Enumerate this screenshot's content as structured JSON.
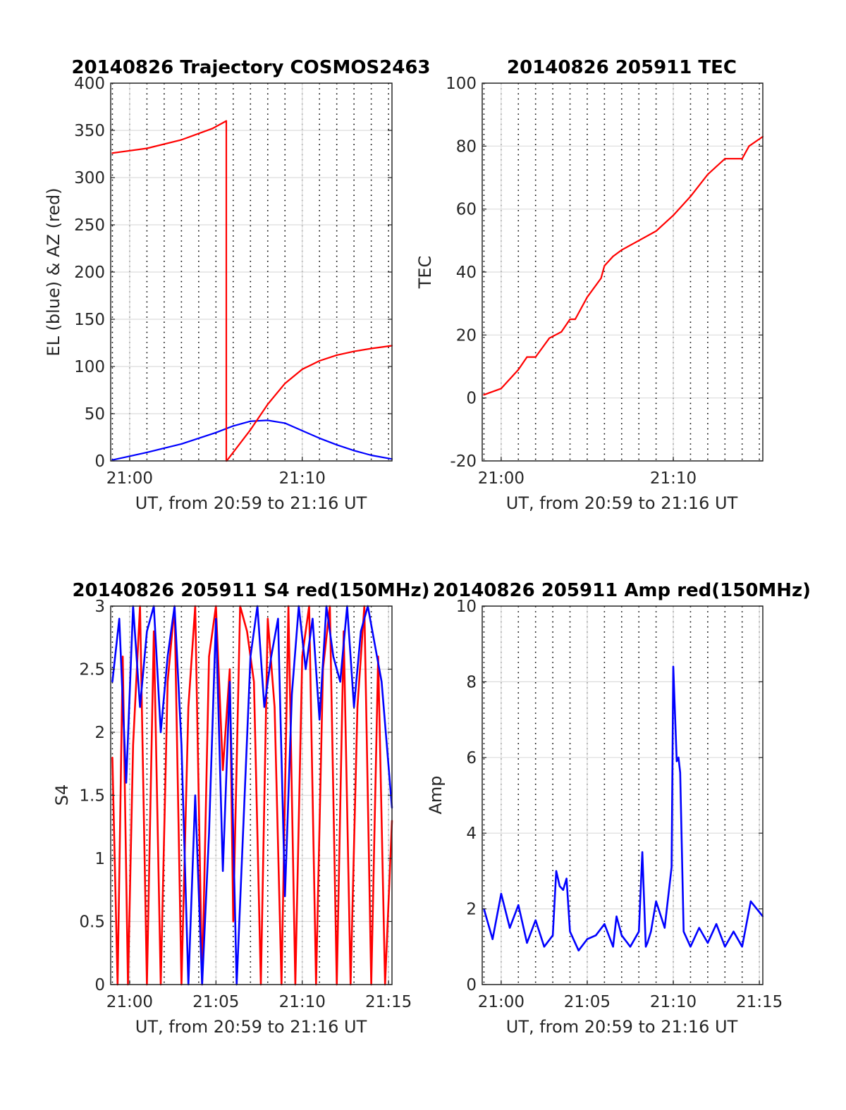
{
  "chart_data": [
    {
      "id": "trajectory",
      "type": "line",
      "title": "20140826 Trajectory COSMOS2463",
      "xlabel": "UT, from 20:59 to 21:16 UT",
      "ylabel": "EL (blue) & AZ (red)",
      "xlim": [
        20.983,
        21.267
      ],
      "ylim": [
        0,
        400
      ],
      "x_unit": "minutes after 20:59 UT",
      "xticks": [
        {
          "m": 1,
          "label": "21:00"
        },
        {
          "m": 11,
          "label": "21:10"
        }
      ],
      "yticks": [
        {
          "v": 0,
          "label": "0"
        },
        {
          "v": 50,
          "label": "50"
        },
        {
          "v": 100,
          "label": "100"
        },
        {
          "v": 150,
          "label": "150"
        },
        {
          "v": 200,
          "label": "200"
        },
        {
          "v": 250,
          "label": "250"
        },
        {
          "v": 300,
          "label": "300"
        },
        {
          "v": 350,
          "label": "350"
        },
        {
          "v": 400,
          "label": "400"
        }
      ],
      "grid": true,
      "series": [
        {
          "name": "EL",
          "color": "#0000ff",
          "x": [
            0,
            2,
            4,
            6,
            7,
            8,
            9,
            10,
            11,
            12,
            13,
            14,
            15,
            16.2
          ],
          "y": [
            1,
            9,
            18,
            30,
            37,
            42,
            43,
            40,
            32,
            24,
            17,
            11,
            6,
            2
          ]
        },
        {
          "name": "AZ",
          "color": "#ff0000",
          "x": [
            0,
            2,
            4,
            5.8,
            6.6,
            6.6,
            6.62,
            8,
            9,
            10,
            11,
            12,
            13,
            14,
            15,
            16.2
          ],
          "y": [
            326,
            331,
            340,
            352,
            360,
            0,
            0,
            33,
            60,
            82,
            97,
            106,
            112,
            116,
            119,
            122
          ]
        }
      ]
    },
    {
      "id": "tec",
      "type": "line",
      "title": "20140826 205911 TEC",
      "xlabel": "UT, from 20:59 to 21:16 UT",
      "ylabel": "TEC",
      "xlim": [
        20.983,
        21.267
      ],
      "ylim": [
        -20,
        100
      ],
      "x_unit": "minutes after 20:59 UT",
      "xticks": [
        {
          "m": 1,
          "label": "21:00"
        },
        {
          "m": 11,
          "label": "21:10"
        }
      ],
      "yticks": [
        {
          "v": -20,
          "label": "-20"
        },
        {
          "v": 0,
          "label": "0"
        },
        {
          "v": 20,
          "label": "20"
        },
        {
          "v": 40,
          "label": "40"
        },
        {
          "v": 60,
          "label": "60"
        },
        {
          "v": 80,
          "label": "80"
        },
        {
          "v": 100,
          "label": "100"
        }
      ],
      "grid": true,
      "series": [
        {
          "name": "TEC",
          "color": "#ff0000",
          "x": [
            0,
            1,
            2,
            2.5,
            3,
            3.8,
            4.5,
            5,
            5.3,
            6,
            6.8,
            7,
            7.5,
            8,
            9,
            10,
            11,
            12,
            13,
            14,
            15,
            15.4,
            16.2
          ],
          "y": [
            1,
            3,
            9,
            13,
            13,
            19,
            21,
            25,
            25,
            32,
            38,
            42,
            45,
            47,
            50,
            53,
            58,
            64,
            71,
            76,
            76,
            80,
            83
          ]
        }
      ]
    },
    {
      "id": "s4",
      "type": "line",
      "title": "20140826 205911 S4 red(150MHz)",
      "xlabel": "UT, from 20:59 to 21:16 UT",
      "ylabel": "S4",
      "xlim": [
        20.983,
        21.267
      ],
      "ylim": [
        0,
        3
      ],
      "x_unit": "minutes after 20:59 UT",
      "xticks": [
        {
          "m": 1,
          "label": "21:00"
        },
        {
          "m": 6,
          "label": "21:05"
        },
        {
          "m": 11,
          "label": "21:10"
        },
        {
          "m": 16,
          "label": "21:15"
        }
      ],
      "yticks": [
        {
          "v": 0,
          "label": "0"
        },
        {
          "v": 0.5,
          "label": "0.5"
        },
        {
          "v": 1,
          "label": "1"
        },
        {
          "v": 1.5,
          "label": "1.5"
        },
        {
          "v": 2,
          "label": "2"
        },
        {
          "v": 2.5,
          "label": "2.5"
        },
        {
          "v": 3,
          "label": "3"
        }
      ],
      "grid": true,
      "series": [
        {
          "name": "red",
          "color": "#ff0000",
          "x": [
            0,
            0.3,
            0.6,
            0.9,
            1.2,
            1.6,
            2.0,
            2.4,
            2.8,
            3.2,
            3.6,
            4.0,
            4.4,
            4.8,
            5.2,
            5.6,
            6.0,
            6.4,
            6.8,
            7.0,
            7.4,
            7.8,
            8.2,
            8.6,
            9.0,
            9.4,
            9.8,
            10.2,
            10.6,
            11.0,
            11.4,
            11.8,
            12.2,
            12.6,
            13.0,
            13.4,
            13.8,
            14.2,
            14.6,
            15.0,
            15.4,
            15.8,
            16.2
          ],
          "y": [
            1.8,
            0,
            2.6,
            0,
            1.9,
            3,
            0,
            2.8,
            0,
            2.4,
            3,
            0,
            2.2,
            3,
            0,
            2.6,
            3,
            1.7,
            2.5,
            0.5,
            3,
            2.8,
            2.4,
            0,
            2.9,
            2.2,
            0,
            3,
            0,
            2.6,
            3,
            0,
            2.5,
            3,
            0,
            2.8,
            0,
            2.2,
            3,
            0,
            2.6,
            0,
            1.3
          ]
        },
        {
          "name": "blue",
          "color": "#0000ff",
          "x": [
            0,
            0.4,
            0.8,
            1.2,
            1.6,
            2.0,
            2.4,
            2.8,
            3.2,
            3.6,
            4.0,
            4.4,
            4.8,
            5.2,
            5.6,
            6.0,
            6.4,
            6.8,
            7.2,
            7.6,
            8.0,
            8.4,
            8.8,
            9.2,
            9.6,
            10.0,
            10.4,
            10.8,
            11.2,
            11.6,
            12.0,
            12.4,
            12.8,
            13.2,
            13.6,
            14.0,
            14.4,
            14.8,
            15.2,
            15.6,
            16.2
          ],
          "y": [
            2.4,
            2.9,
            1.6,
            3,
            2.2,
            2.8,
            3,
            2.0,
            2.6,
            3,
            1.9,
            0,
            1.5,
            0,
            1.2,
            2.9,
            0.9,
            2.4,
            0,
            1.3,
            2.6,
            3,
            2.2,
            2.6,
            2.9,
            0.7,
            2.3,
            3,
            2.5,
            2.9,
            2.1,
            3,
            2.6,
            2.4,
            3,
            2.2,
            2.8,
            3,
            2.7,
            2.4,
            1.4
          ]
        }
      ]
    },
    {
      "id": "amp",
      "type": "line",
      "title": "20140826 205911 Amp red(150MHz)",
      "xlabel": "UT, from 20:59 to 21:16 UT",
      "ylabel": "Amp",
      "xlim": [
        20.983,
        21.267
      ],
      "ylim": [
        0,
        10
      ],
      "x_unit": "minutes after 20:59 UT",
      "xticks": [
        {
          "m": 1,
          "label": "21:00"
        },
        {
          "m": 6,
          "label": "21:05"
        },
        {
          "m": 11,
          "label": "21:10"
        },
        {
          "m": 16,
          "label": "21:15"
        }
      ],
      "yticks": [
        {
          "v": 0,
          "label": "0"
        },
        {
          "v": 2,
          "label": "2"
        },
        {
          "v": 4,
          "label": "4"
        },
        {
          "v": 6,
          "label": "6"
        },
        {
          "v": 8,
          "label": "8"
        },
        {
          "v": 10,
          "label": "10"
        }
      ],
      "grid": true,
      "series": [
        {
          "name": "Amp",
          "color": "#0000ff",
          "x": [
            0,
            0.5,
            1.0,
            1.5,
            2.0,
            2.5,
            3.0,
            3.5,
            4.0,
            4.2,
            4.4,
            4.6,
            4.8,
            5.0,
            5.5,
            6.0,
            6.5,
            7.0,
            7.5,
            7.7,
            8.0,
            8.5,
            9.0,
            9.2,
            9.4,
            9.5,
            9.7,
            10.0,
            10.5,
            10.9,
            11.0,
            11.2,
            11.3,
            11.4,
            11.6,
            12.0,
            12.5,
            13.0,
            13.5,
            14.0,
            14.5,
            15.0,
            15.5,
            16.2
          ],
          "x_note": "",
          "y": [
            2.0,
            1.2,
            2.4,
            1.5,
            2.1,
            1.1,
            1.7,
            1.0,
            1.3,
            3.0,
            2.6,
            2.5,
            2.8,
            1.4,
            0.9,
            1.2,
            1.3,
            1.6,
            1.0,
            1.8,
            1.3,
            1.0,
            1.4,
            3.5,
            1.0,
            1.1,
            1.4,
            2.2,
            1.5,
            3.1,
            8.4,
            5.9,
            6.0,
            5.6,
            1.4,
            1.0,
            1.5,
            1.1,
            1.6,
            1.0,
            1.4,
            1.0,
            2.2,
            1.8
          ]
        }
      ]
    }
  ]
}
